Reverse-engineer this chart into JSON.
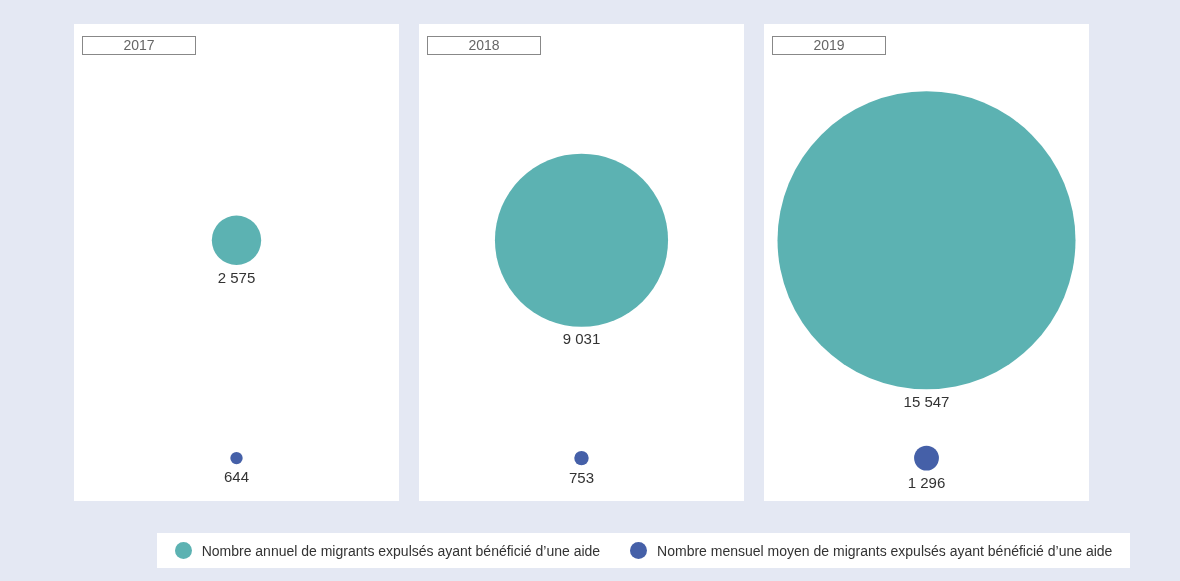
{
  "chart_data": {
    "type": "other",
    "categories": [
      "2017",
      "2018",
      "2019"
    ],
    "legend": "bottom",
    "series": [
      {
        "name": "Nombre annuel de migrants expulsés ayant bénéficié d’une aide",
        "color": "#5cb2b2",
        "values": [
          2575,
          9031,
          15547
        ],
        "value_labels": [
          "2 575",
          "9 031",
          "15 547"
        ]
      },
      {
        "name": "Nombre mensuel moyen de migrants expulsés ayant bénéficié d’une aide",
        "color": "#4560a8",
        "values": [
          644,
          753,
          1296
        ],
        "value_labels": [
          "644",
          "753",
          "1 296"
        ]
      }
    ]
  }
}
